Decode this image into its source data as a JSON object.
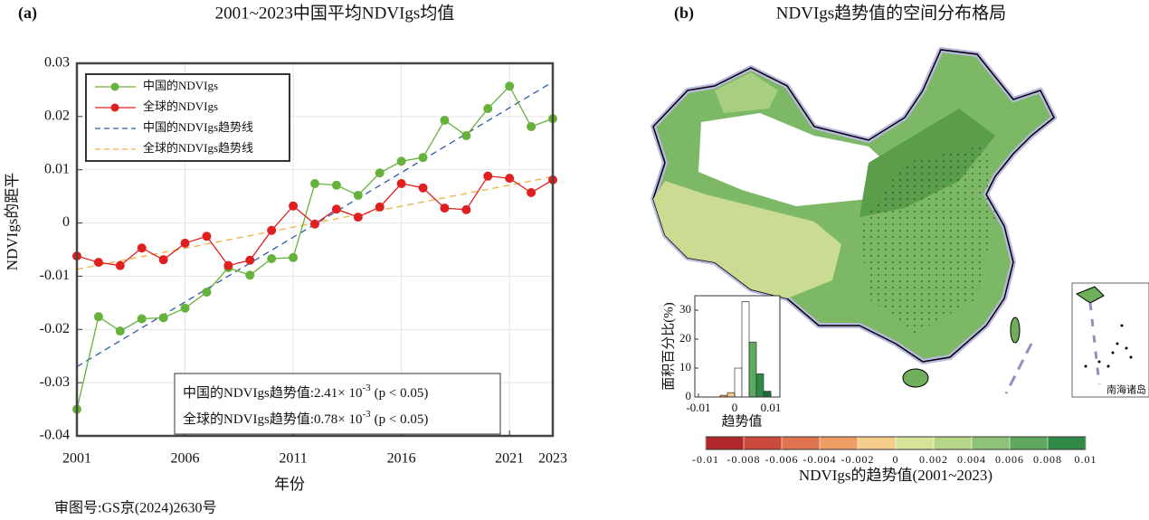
{
  "footnote": "审图号:GS京(2024)2630号",
  "chart_data": [
    {
      "type": "line",
      "label": "(a)",
      "title": "2001~2023中国平均NDVIgs均值",
      "xlabel": "年份",
      "ylabel": "NDVIgs的距平",
      "x": [
        2001,
        2002,
        2003,
        2004,
        2005,
        2006,
        2007,
        2008,
        2009,
        2010,
        2011,
        2012,
        2013,
        2014,
        2015,
        2016,
        2017,
        2018,
        2019,
        2020,
        2021,
        2022,
        2023
      ],
      "series": [
        {
          "name": "中国的NDVIgs",
          "color": "#66b23c",
          "values": [
            -0.035,
            -0.0176,
            -0.0203,
            -0.018,
            -0.0178,
            -0.016,
            -0.013,
            -0.0084,
            -0.0098,
            -0.0067,
            -0.0065,
            0.0074,
            0.0071,
            0.0052,
            0.0094,
            0.0116,
            0.0123,
            0.0193,
            0.0164,
            0.0215,
            0.0257,
            0.0181,
            0.0196
          ]
        },
        {
          "name": "全球的NDVIgs",
          "color": "#e02020",
          "values": [
            -0.0062,
            -0.0074,
            -0.008,
            -0.0047,
            -0.0069,
            -0.0038,
            -0.0025,
            -0.008,
            -0.007,
            -0.0014,
            0.0032,
            -0.0002,
            0.0026,
            0.0011,
            0.003,
            0.0074,
            0.0066,
            0.0028,
            0.0025,
            0.0088,
            0.0084,
            0.0057,
            0.0081
          ]
        }
      ],
      "trend_lines": [
        {
          "name": "中国的NDVIgs趋势线",
          "color": "#2b5ba8",
          "x": [
            2001,
            2023
          ],
          "values": [
            -0.027,
            0.0265
          ]
        },
        {
          "name": "全球的NDVIgs趋势线",
          "color": "#f0b040",
          "x": [
            2001,
            2023
          ],
          "values": [
            -0.0087,
            0.0087
          ]
        }
      ],
      "annotations": [
        {
          "text": "中国的NDVIgs趋势值:2.41× 10",
          "exp": "-3",
          "tail": "(p < 0.05)"
        },
        {
          "text": "全球的NDVIgs趋势值:0.78× 10",
          "exp": "-3",
          "tail": "(p < 0.05)"
        }
      ],
      "xlim": [
        2001,
        2023
      ],
      "xticks": [
        2001,
        2006,
        2011,
        2016,
        2021,
        2023
      ],
      "ylim": [
        -0.04,
        0.03
      ],
      "yticks": [
        -0.04,
        -0.03,
        -0.02,
        -0.01,
        0,
        0.01,
        0.02,
        0.03
      ],
      "grid": true,
      "legend": "upper left"
    },
    {
      "type": "map",
      "label": "(b)",
      "title": "NDVIgs趋势值的空间分布格局",
      "inset_label": "南海诸岛",
      "histogram": {
        "type": "histogram",
        "ylabel": "面积百分比(%)",
        "xlabel": "趋势值",
        "bins": [
          -0.004,
          -0.002,
          0,
          0.002,
          0.004,
          0.006,
          0.008,
          0.01
        ],
        "counts": [
          0.6,
          1.5,
          10,
          33,
          19,
          8,
          2
        ],
        "colors": [
          "#ee9e65",
          "#f6cc8a",
          "#ffffff",
          "#ffffff",
          "#5ea860",
          "#2f8a45",
          "#13703a"
        ],
        "xlim": [
          -0.011,
          0.0125
        ],
        "xticks": [
          -0.01,
          0,
          0.01
        ],
        "ylim": [
          0,
          35
        ],
        "yticks": [
          0,
          10,
          20,
          30
        ]
      },
      "colorbar": {
        "label": "NDVIgs的趋势值(2001~2023)",
        "lim": [
          -0.01,
          0.01
        ],
        "ticks": [
          -0.01,
          -0.008,
          -0.006,
          -0.004,
          -0.002,
          0,
          0.002,
          0.004,
          0.006,
          0.008,
          0.01
        ],
        "colors": [
          "#b2282a",
          "#cc4a3c",
          "#e07451",
          "#ee9e65",
          "#f6cc8a",
          "#d8e39a",
          "#b5d68a",
          "#8dc278",
          "#5ea860",
          "#2f8a45"
        ]
      }
    }
  ]
}
